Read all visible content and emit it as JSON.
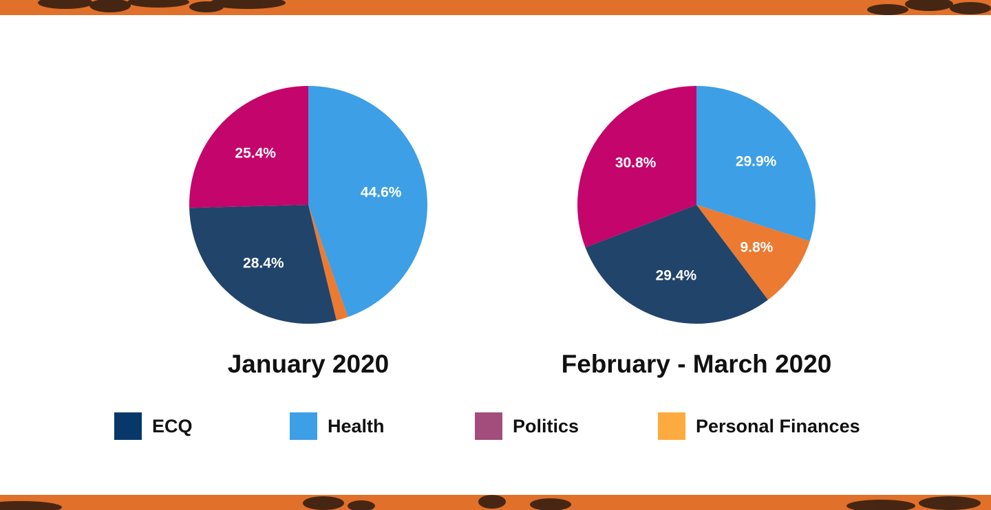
{
  "colors": {
    "ecq_slice": "#21446b",
    "health_slice": "#3d9fe5",
    "politics_slice": "#c4056b",
    "finances_slice": "#ec7a31",
    "band": "#e0702a",
    "band_pattern": "#2b1a10"
  },
  "chart_data": [
    {
      "type": "pie",
      "title": "January 2020",
      "slices": [
        {
          "category": "Health",
          "value": 44.6,
          "label": "44.6%"
        },
        {
          "category": "Personal Finances",
          "value": 1.6,
          "label": ""
        },
        {
          "category": "ECQ",
          "value": 28.4,
          "label": "28.4%"
        },
        {
          "category": "Politics",
          "value": 25.4,
          "label": "25.4%"
        }
      ]
    },
    {
      "type": "pie",
      "title": "February - March 2020",
      "slices": [
        {
          "category": "Health",
          "value": 29.9,
          "label": "29.9%"
        },
        {
          "category": "Personal Finances",
          "value": 9.8,
          "label": "9.8%"
        },
        {
          "category": "ECQ",
          "value": 29.4,
          "label": "29.4%"
        },
        {
          "category": "Politics",
          "value": 30.8,
          "label": "30.8%"
        }
      ]
    }
  ],
  "legend": [
    {
      "name": "ECQ",
      "color": "#08386a"
    },
    {
      "name": "Health",
      "color": "#3d9fe5"
    },
    {
      "name": "Politics",
      "color": "#a34d7c"
    },
    {
      "name": "Personal Finances",
      "color": "#fdab40"
    }
  ]
}
